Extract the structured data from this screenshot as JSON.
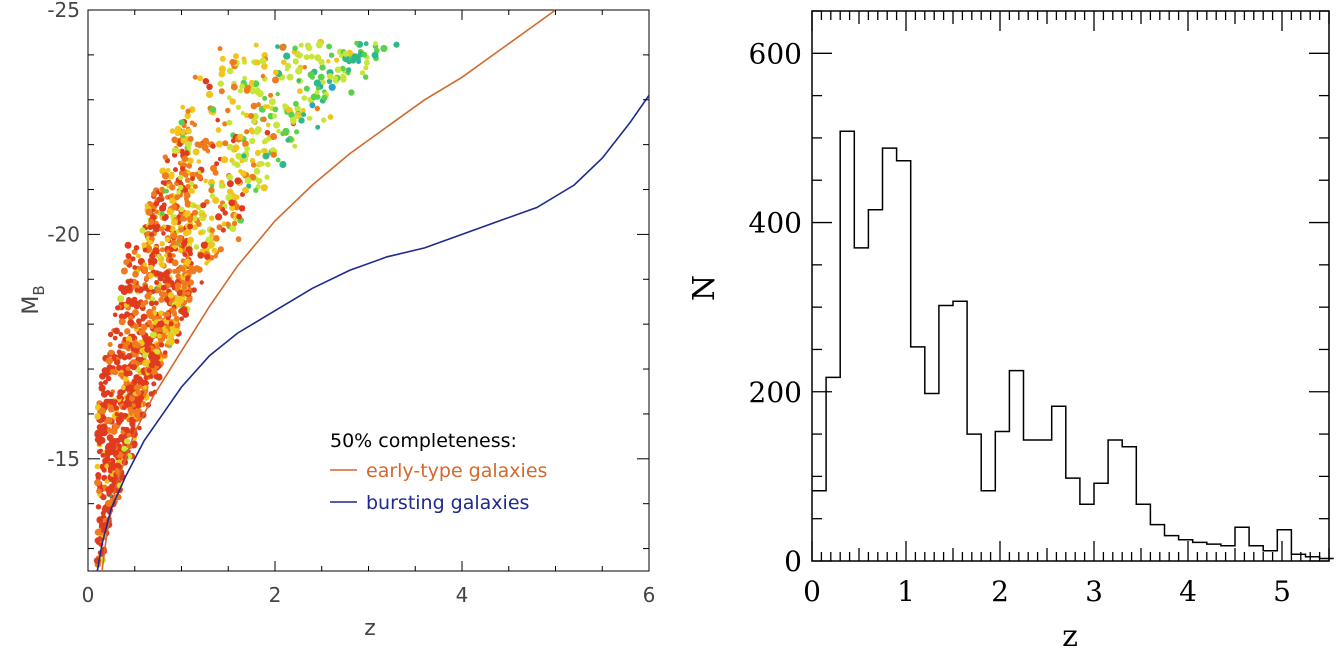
{
  "chart_data": [
    {
      "type": "scatter",
      "xlabel": "z",
      "ylabel": "M",
      "ylabel_subscript": "B",
      "xlim": [
        0,
        6
      ],
      "ylim": [
        -12.5,
        -25
      ],
      "x_ticks": [
        0,
        2,
        4,
        6
      ],
      "y_ticks": [
        -25,
        -20,
        -15
      ],
      "legend": {
        "title": "50% completeness:",
        "entries": [
          {
            "name": "early-type galaxies",
            "color": "#d2692d"
          },
          {
            "name": "bursting galaxies",
            "color": "#1c2a8c"
          }
        ]
      },
      "curves": [
        {
          "name": "early-type galaxies",
          "color": "#d2692d",
          "points": [
            [
              0.15,
              -12.5
            ],
            [
              0.2,
              -13.3
            ],
            [
              0.3,
              -14.4
            ],
            [
              0.5,
              -15.6
            ],
            [
              0.7,
              -16.4
            ],
            [
              1.0,
              -17.4
            ],
            [
              1.3,
              -18.4
            ],
            [
              1.6,
              -19.3
            ],
            [
              2.0,
              -20.3
            ],
            [
              2.4,
              -21.1
            ],
            [
              2.8,
              -21.8
            ],
            [
              3.2,
              -22.4
            ],
            [
              3.6,
              -23.0
            ],
            [
              4.0,
              -23.5
            ],
            [
              4.4,
              -24.1
            ],
            [
              4.8,
              -24.7
            ],
            [
              5.0,
              -25.0
            ]
          ]
        },
        {
          "name": "bursting galaxies",
          "color": "#1c2a8c",
          "points": [
            [
              0.1,
              -12.5
            ],
            [
              0.15,
              -13.1
            ],
            [
              0.25,
              -13.9
            ],
            [
              0.4,
              -14.6
            ],
            [
              0.6,
              -15.4
            ],
            [
              0.8,
              -16.0
            ],
            [
              1.0,
              -16.6
            ],
            [
              1.3,
              -17.3
            ],
            [
              1.6,
              -17.8
            ],
            [
              2.0,
              -18.3
            ],
            [
              2.4,
              -18.8
            ],
            [
              2.8,
              -19.2
            ],
            [
              3.2,
              -19.5
            ],
            [
              3.6,
              -19.7
            ],
            [
              4.0,
              -20.0
            ],
            [
              4.4,
              -20.3
            ],
            [
              4.8,
              -20.6
            ],
            [
              5.2,
              -21.1
            ],
            [
              5.5,
              -21.7
            ],
            [
              5.8,
              -22.5
            ],
            [
              6.0,
              -23.1
            ]
          ]
        }
      ],
      "point_color_scale": [
        "#e03b1e",
        "#f07a1e",
        "#f2c51c",
        "#c8e63a",
        "#58d24a",
        "#2fb88c",
        "#27a6c8",
        "#2c4ab6",
        "#1c2a8c",
        "#7b27c0"
      ]
    },
    {
      "type": "histogram",
      "xlabel": "z",
      "ylabel": "N",
      "xlim": [
        0,
        5.5
      ],
      "ylim": [
        0,
        650
      ],
      "x_ticks": [
        0,
        1,
        2,
        3,
        4,
        5
      ],
      "y_ticks": [
        0,
        200,
        400,
        600
      ],
      "bin_width": 0.15,
      "bins_start": 0,
      "values": [
        83,
        217,
        508,
        370,
        415,
        488,
        473,
        253,
        198,
        302,
        307,
        150,
        83,
        153,
        225,
        143,
        143,
        183,
        98,
        67,
        92,
        143,
        135,
        67,
        43,
        30,
        25,
        22,
        20,
        18,
        40,
        18,
        12,
        37,
        8,
        5,
        3,
        3
      ]
    }
  ]
}
